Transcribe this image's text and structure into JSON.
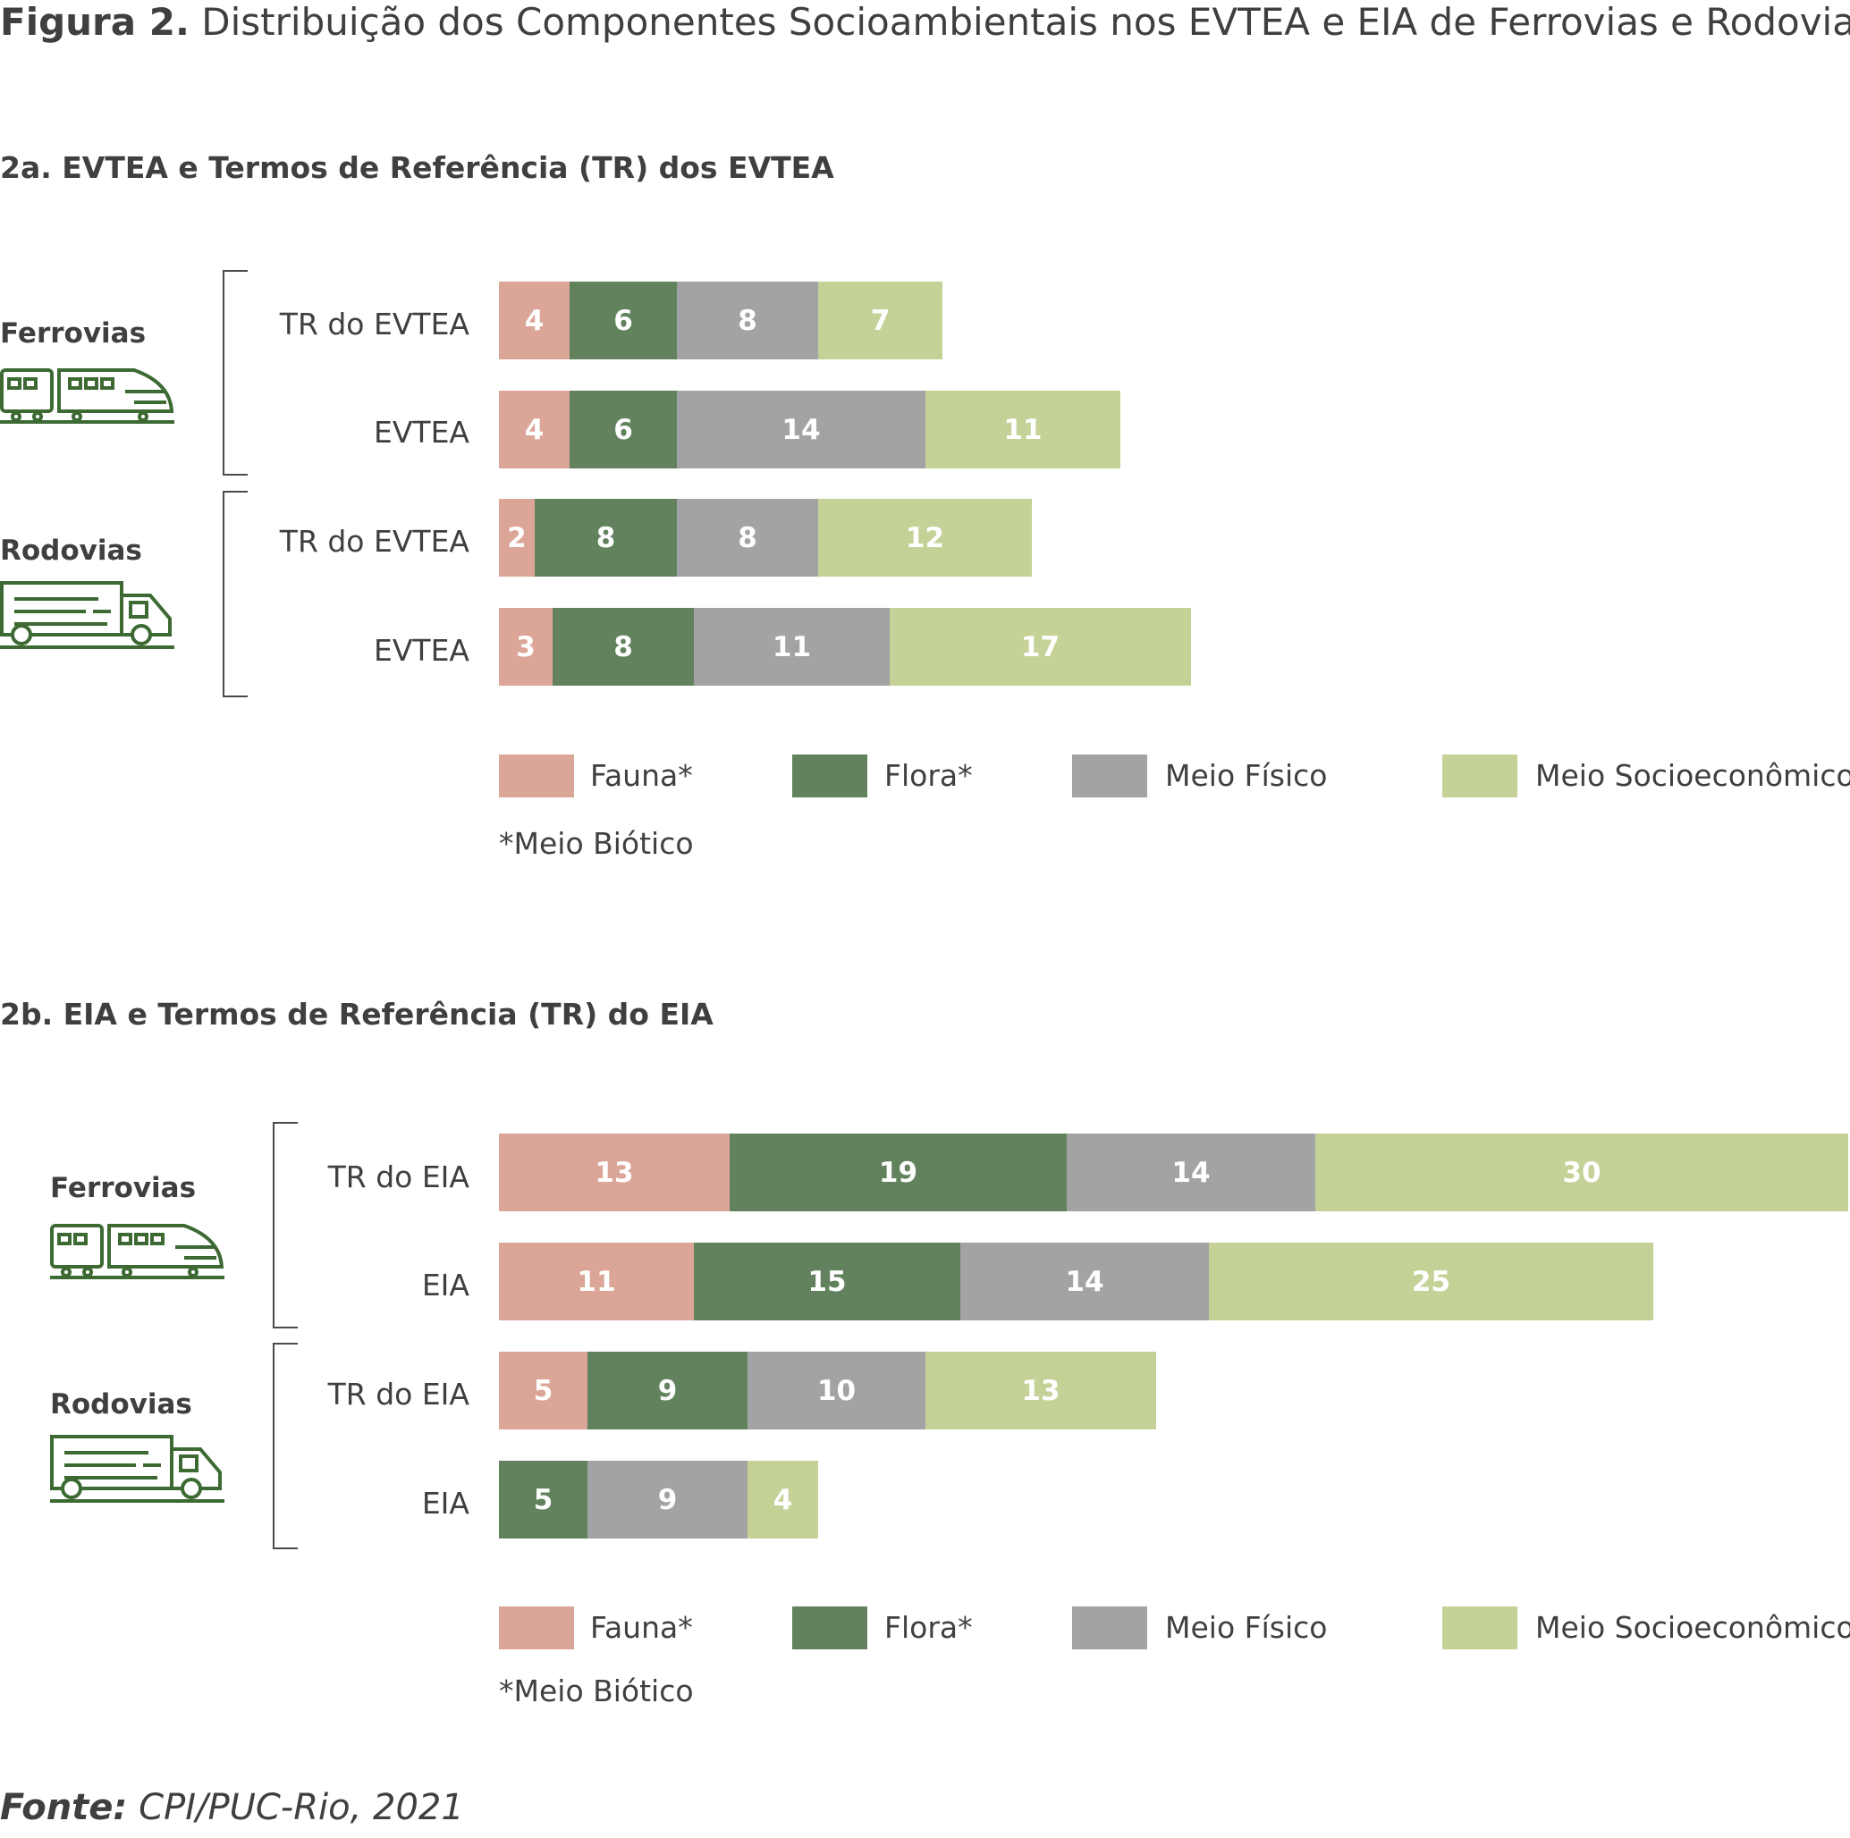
{
  "figure": {
    "label": "Figura 2.",
    "title": "Distribuição dos Componentes Socioambientais nos EVTEA e EIA de Ferrovias e Rodovias"
  },
  "colors": {
    "fauna": "#dba597",
    "flora": "#62825e",
    "meio_fisico": "#a3a2a4",
    "meio_socioeconomico": "#c5d297",
    "icon": "#3d6a33"
  },
  "legend": {
    "items": [
      "Fauna*",
      "Flora*",
      "Meio Físico",
      "Meio Socioeconômico"
    ],
    "note": "*Meio Biótico"
  },
  "source": {
    "label": "Fonte:",
    "text": "CPI/PUC-Rio, 2021"
  },
  "chart_data": [
    {
      "type": "bar",
      "orientation": "horizontal",
      "stacked": true,
      "title": "2a. EVTEA e Termos de Referência (TR) dos EVTEA",
      "groups": [
        "Ferrovias",
        "Rodovias"
      ],
      "categories": [
        "TR do EVTEA",
        "EVTEA",
        "TR do EVTEA",
        "EVTEA"
      ],
      "category_groups": [
        "Ferrovias",
        "Ferrovias",
        "Rodovias",
        "Rodovias"
      ],
      "series": [
        {
          "name": "Fauna*",
          "values": [
            4,
            4,
            2,
            3
          ]
        },
        {
          "name": "Flora*",
          "values": [
            6,
            6,
            8,
            8
          ]
        },
        {
          "name": "Meio Físico",
          "values": [
            8,
            14,
            8,
            11
          ]
        },
        {
          "name": "Meio Socioeconômico",
          "values": [
            7,
            11,
            12,
            17
          ]
        }
      ],
      "legend_position": "bottom"
    },
    {
      "type": "bar",
      "orientation": "horizontal",
      "stacked": true,
      "title": "2b. EIA e Termos de Referência (TR) do EIA",
      "groups": [
        "Ferrovias",
        "Rodovias"
      ],
      "categories": [
        "TR do EIA",
        "EIA",
        "TR do EIA",
        "EIA"
      ],
      "category_groups": [
        "Ferrovias",
        "Ferrovias",
        "Rodovias",
        "Rodovias"
      ],
      "series": [
        {
          "name": "Fauna*",
          "values": [
            13,
            11,
            5,
            0
          ]
        },
        {
          "name": "Flora*",
          "values": [
            19,
            15,
            9,
            5
          ]
        },
        {
          "name": "Meio Físico",
          "values": [
            14,
            14,
            10,
            9
          ]
        },
        {
          "name": "Meio Socioeconômico",
          "values": [
            30,
            25,
            13,
            4
          ]
        }
      ],
      "legend_position": "bottom"
    }
  ]
}
